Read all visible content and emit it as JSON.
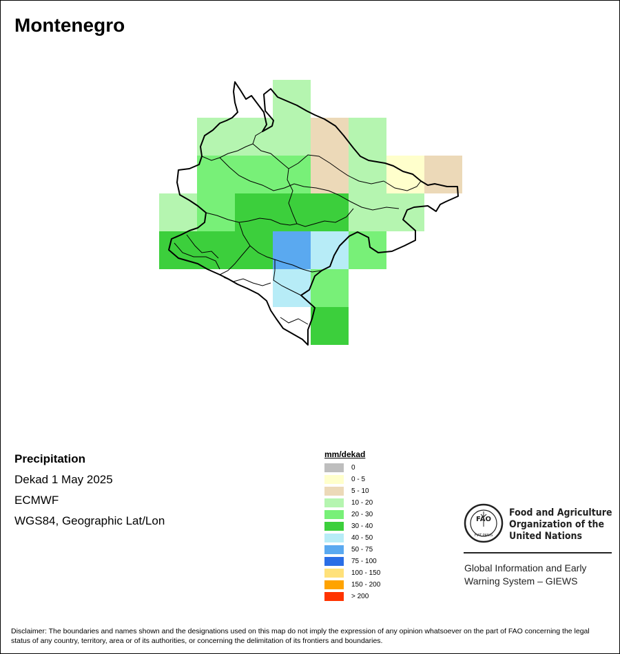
{
  "title": "Montenegro",
  "info": {
    "variable": "Precipitation",
    "period": "Dekad 1 May 2025",
    "source": "ECMWF",
    "projection": "WGS84, Geographic Lat/Lon"
  },
  "legend": {
    "title": "mm/dekad",
    "items": [
      {
        "label": "0",
        "color": "#bebebe"
      },
      {
        "label": "0 - 5",
        "color": "#ffffcc"
      },
      {
        "label": "5 - 10",
        "color": "#ecd9b8"
      },
      {
        "label": "10 - 20",
        "color": "#b5f5b0"
      },
      {
        "label": "20 - 30",
        "color": "#78f078"
      },
      {
        "label": "30 - 40",
        "color": "#3ccf3c"
      },
      {
        "label": "40 - 50",
        "color": "#b7ecf7"
      },
      {
        "label": "50 - 75",
        "color": "#5aa9f0"
      },
      {
        "label": "75 - 100",
        "color": "#2b6ee6"
      },
      {
        "label": "100 - 150",
        "color": "#ffe17a"
      },
      {
        "label": "150 - 200",
        "color": "#ffa300"
      },
      {
        "label": "> 200",
        "color": "#ff3300"
      }
    ]
  },
  "grid": {
    "rows": [
      {
        "lat": "43.5",
        "cells": [
          {
            "lon": "19.25",
            "cls": "10 - 20"
          }
        ]
      },
      {
        "lat": "43.25",
        "cells": [
          {
            "lon": "18.75",
            "cls": "10 - 20"
          },
          {
            "lon": "19.0",
            "cls": "10 - 20"
          },
          {
            "lon": "19.25",
            "cls": "10 - 20"
          },
          {
            "lon": "19.5",
            "cls": "5 - 10"
          },
          {
            "lon": "19.75",
            "cls": "10 - 20"
          }
        ]
      },
      {
        "lat": "43.0",
        "cells": [
          {
            "lon": "18.75",
            "cls": "20 - 30"
          },
          {
            "lon": "19.0",
            "cls": "20 - 30"
          },
          {
            "lon": "19.25",
            "cls": "20 - 30"
          },
          {
            "lon": "19.5",
            "cls": "5 - 10"
          },
          {
            "lon": "19.75",
            "cls": "10 - 20"
          },
          {
            "lon": "20.0",
            "cls": "0 - 5"
          },
          {
            "lon": "20.25",
            "cls": "5 - 10"
          }
        ]
      },
      {
        "lat": "42.75",
        "cells": [
          {
            "lon": "18.5",
            "cls": "10 - 20"
          },
          {
            "lon": "18.75",
            "cls": "20 - 30"
          },
          {
            "lon": "19.0",
            "cls": "30 - 40"
          },
          {
            "lon": "19.25",
            "cls": "30 - 40"
          },
          {
            "lon": "19.5",
            "cls": "30 - 40"
          },
          {
            "lon": "19.75",
            "cls": "10 - 20"
          },
          {
            "lon": "20.0",
            "cls": "10 - 20"
          }
        ]
      },
      {
        "lat": "42.5",
        "cells": [
          {
            "lon": "18.5",
            "cls": "30 - 40"
          },
          {
            "lon": "18.75",
            "cls": "30 - 40"
          },
          {
            "lon": "19.0",
            "cls": "30 - 40"
          },
          {
            "lon": "19.25",
            "cls": "50 - 75"
          },
          {
            "lon": "19.5",
            "cls": "40 - 50"
          },
          {
            "lon": "19.75",
            "cls": "20 - 30"
          }
        ]
      },
      {
        "lat": "42.25",
        "cells": [
          {
            "lon": "19.25",
            "cls": "40 - 50"
          },
          {
            "lon": "19.5",
            "cls": "20 - 30"
          }
        ]
      },
      {
        "lat": "42.0",
        "cells": [
          {
            "lon": "19.5",
            "cls": "30 - 40"
          }
        ]
      }
    ]
  },
  "logo": {
    "org_lines": [
      "Food and Agriculture",
      "Organization of the",
      "United Nations"
    ],
    "emblem_text": "FIAT PANIS",
    "emblem_letters": "FAO"
  },
  "giews": {
    "line1": "Global Information and Early",
    "line2": "Warning System – GIEWS"
  },
  "disclaimer": "Disclaimer: The boundaries and names shown and the designations used on this map do not imply the expression of any opinion whatsoever on the part of FAO concerning the legal status of any country, territory, area or of its authorities, or concerning the delimitation of its frontiers and boundaries."
}
